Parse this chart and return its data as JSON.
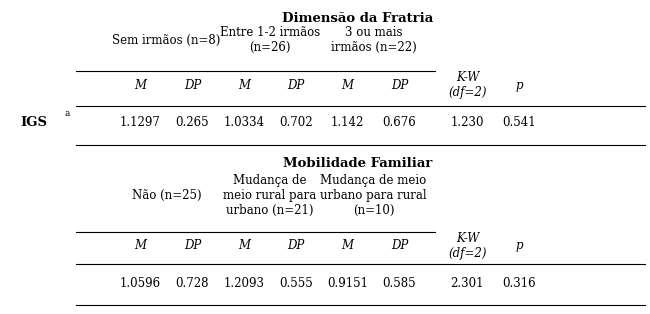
{
  "title1": "Dimensão da Fratria",
  "title2": "Mobilidade Familiar",
  "row_label": "IGS",
  "row_label_sup": "a",
  "section1": {
    "col_headers": [
      "Sem irmãos (n=8)",
      "Entre 1-2 irmãos\n(n=26)",
      "3 ou mais\nirmãos (n=22)"
    ],
    "stat_header": [
      "K-W\n(df=2)",
      "p"
    ],
    "subheaders": [
      "M",
      "DP",
      "M",
      "DP",
      "M",
      "DP"
    ],
    "values": [
      "1.1297",
      "0.265",
      "1.0334",
      "0.702",
      "1.142",
      "0.676",
      "1.230",
      "0.541"
    ]
  },
  "section2": {
    "col_headers": [
      "Não (n=25)",
      "Mudança de\nmeio rural para\nurbano (n=21)",
      "Mudança de meio\nurbano para rural\n(n=10)"
    ],
    "stat_header": [
      "K-W\n(df=2)",
      "p"
    ],
    "subheaders": [
      "M",
      "DP",
      "M",
      "DP",
      "M",
      "DP"
    ],
    "values": [
      "1.0596",
      "0.728",
      "1.2093",
      "0.555",
      "0.9151",
      "0.585",
      "2.301",
      "0.316"
    ]
  },
  "bg_color": "#ffffff",
  "text_color": "#000000",
  "font_size": 8.5,
  "title_font_size": 9.5
}
